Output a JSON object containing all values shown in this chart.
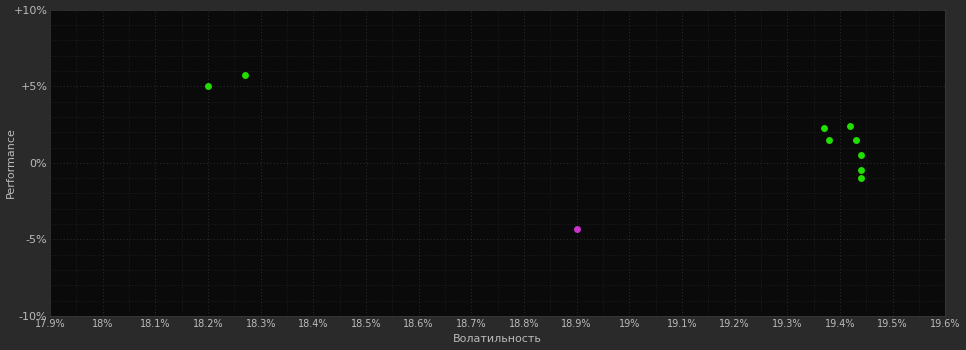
{
  "background_color": "#2a2a2a",
  "plot_bg_color": "#0a0a0a",
  "grid_color": "#3a3a3a",
  "text_color": "#bbbbbb",
  "xlabel": "Волатильность",
  "ylabel": "Performance",
  "xlim": [
    17.9,
    19.6
  ],
  "ylim": [
    -10,
    10
  ],
  "xticks": [
    17.9,
    18.0,
    18.1,
    18.2,
    18.3,
    18.4,
    18.5,
    18.6,
    18.7,
    18.8,
    18.9,
    19.0,
    19.1,
    19.2,
    19.3,
    19.4,
    19.5,
    19.6
  ],
  "yticks": [
    -10,
    -5,
    0,
    5,
    10
  ],
  "ytick_labels": [
    "-10%",
    "-5%",
    "0%",
    "+5%",
    "+10%"
  ],
  "xtick_labels": [
    "17.9%",
    "18%",
    "18.1%",
    "18.2%",
    "18.3%",
    "18.4%",
    "18.5%",
    "18.6%",
    "18.7%",
    "18.8%",
    "18.9%",
    "19%",
    "19.1%",
    "19.2%",
    "19.3%",
    "19.4%",
    "19.5%",
    "19.6%"
  ],
  "green_points": [
    [
      18.2,
      5.0
    ],
    [
      18.27,
      5.7
    ],
    [
      19.37,
      2.3
    ],
    [
      19.42,
      2.4
    ],
    [
      19.38,
      1.5
    ],
    [
      19.43,
      1.5
    ],
    [
      19.44,
      0.5
    ],
    [
      19.44,
      -0.5
    ],
    [
      19.44,
      -1.0
    ]
  ],
  "magenta_points": [
    [
      18.9,
      -4.3
    ]
  ],
  "green_color": "#22dd00",
  "magenta_color": "#cc33cc",
  "marker_size": 5
}
